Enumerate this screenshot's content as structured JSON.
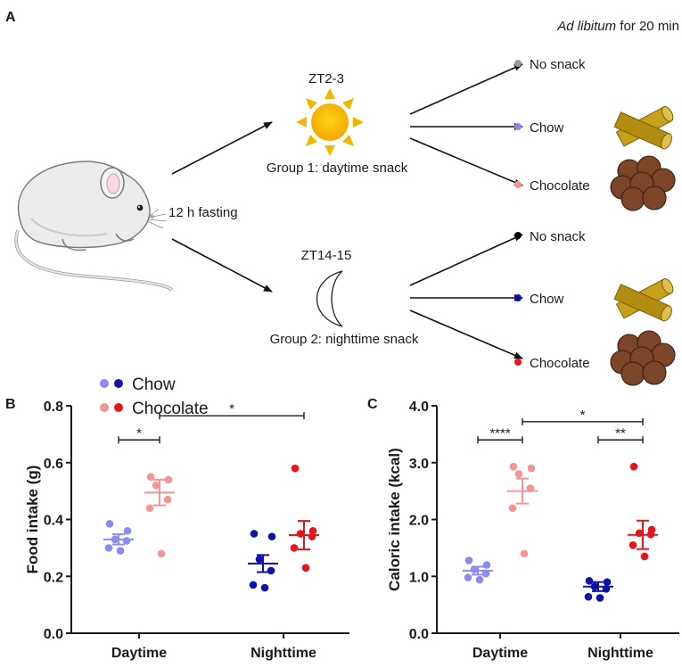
{
  "panel_a": {
    "label": "A",
    "top_note_italic": "Ad libitum",
    "top_note_rest": " for 20 min",
    "fasting": "12 h fasting",
    "group1": {
      "time": "ZT2-3",
      "label": "Group 1: daytime snack",
      "options": [
        {
          "label": "No snack",
          "color": "#999999"
        },
        {
          "label": "Chow",
          "color": "#8b8bef"
        },
        {
          "label": "Chocolate",
          "color": "#f49494"
        }
      ]
    },
    "group2": {
      "time": "ZT14-15",
      "label": "Group 2: nighttime snack",
      "options": [
        {
          "label": "No snack",
          "color": "#000000"
        },
        {
          "label": "Chow",
          "color": "#0f10a8"
        },
        {
          "label": "Chocolate",
          "color": "#e8141c"
        }
      ]
    },
    "icons": {
      "mouse": "mouse-illustration",
      "sun": "sun-icon",
      "moon": "moon-icon",
      "chow": "chow-pellet-icon",
      "chocolate": "chocolate-pellet-icon"
    }
  },
  "legend": [
    {
      "label": "Chow",
      "colors": [
        "#8b8bef",
        "#0f10a8"
      ]
    },
    {
      "label": "Chocolate",
      "colors": [
        "#f49494",
        "#e8141c"
      ]
    }
  ],
  "chart_data": [
    {
      "panel": "B",
      "type": "scatter",
      "ylabel": "Food intake (g)",
      "ylim": [
        0.0,
        0.8
      ],
      "yticks": [
        "0.0",
        "0.2",
        "0.4",
        "0.6",
        "0.8"
      ],
      "categories": [
        "Daytime",
        "Nighttime"
      ],
      "series": [
        {
          "name": "Daytime Chow",
          "color": "#8b8bef",
          "group": 0,
          "offset": -1,
          "points": [
            0.385,
            0.36,
            0.33,
            0.325,
            0.3,
            0.29
          ],
          "mean": 0.33,
          "sem": 0.018
        },
        {
          "name": "Daytime Chocolate",
          "color": "#f49494",
          "group": 0,
          "offset": 1,
          "points": [
            0.55,
            0.54,
            0.52,
            0.47,
            0.44,
            0.28
          ],
          "mean": 0.495,
          "sem": 0.045
        },
        {
          "name": "Nighttime Chow",
          "color": "#0f10a8",
          "group": 1,
          "offset": -1,
          "points": [
            0.35,
            0.34,
            0.26,
            0.22,
            0.17,
            0.16
          ],
          "mean": 0.245,
          "sem": 0.03
        },
        {
          "name": "Nighttime Chocolate",
          "color": "#e8141c",
          "group": 1,
          "offset": 1,
          "points": [
            0.58,
            0.36,
            0.35,
            0.34,
            0.3,
            0.23
          ],
          "mean": 0.345,
          "sem": 0.05
        }
      ],
      "significance": [
        {
          "label": "*",
          "from": [
            0,
            -1
          ],
          "to": [
            0,
            1
          ],
          "y": 0.68
        },
        {
          "label": "*",
          "from": [
            0,
            1
          ],
          "to": [
            1,
            1
          ],
          "y": 0.765
        }
      ]
    },
    {
      "panel": "C",
      "type": "scatter",
      "ylabel": "Caloric intake (kcal)",
      "ylim": [
        0.0,
        4.0
      ],
      "yticks": [
        "0.0",
        "1.0",
        "2.0",
        "3.0",
        "4.0"
      ],
      "categories": [
        "Daytime",
        "Nighttime"
      ],
      "series": [
        {
          "name": "Daytime Chow",
          "color": "#8b8bef",
          "group": 0,
          "offset": -1,
          "points": [
            1.28,
            1.2,
            1.12,
            1.05,
            0.98,
            0.94
          ],
          "mean": 1.1,
          "sem": 0.07
        },
        {
          "name": "Daytime Chocolate",
          "color": "#f49494",
          "group": 0,
          "offset": 1,
          "points": [
            2.93,
            2.9,
            2.8,
            2.55,
            2.2,
            1.4
          ],
          "mean": 2.5,
          "sem": 0.22
        },
        {
          "name": "Nighttime Chow",
          "color": "#0f10a8",
          "group": 1,
          "offset": -1,
          "points": [
            0.92,
            0.9,
            0.82,
            0.78,
            0.64,
            0.62
          ],
          "mean": 0.82,
          "sem": 0.08
        },
        {
          "name": "Nighttime Chocolate",
          "color": "#e8141c",
          "group": 1,
          "offset": 1,
          "points": [
            2.93,
            1.82,
            1.76,
            1.74,
            1.55,
            1.35
          ],
          "mean": 1.73,
          "sem": 0.25
        }
      ],
      "significance": [
        {
          "label": "****",
          "from": [
            0,
            -1
          ],
          "to": [
            0,
            1
          ],
          "y": 3.4
        },
        {
          "label": "**",
          "from": [
            1,
            -1
          ],
          "to": [
            1,
            1
          ],
          "y": 3.4
        },
        {
          "label": "*",
          "from": [
            0,
            1
          ],
          "to": [
            1,
            1
          ],
          "y": 3.72
        }
      ]
    }
  ]
}
